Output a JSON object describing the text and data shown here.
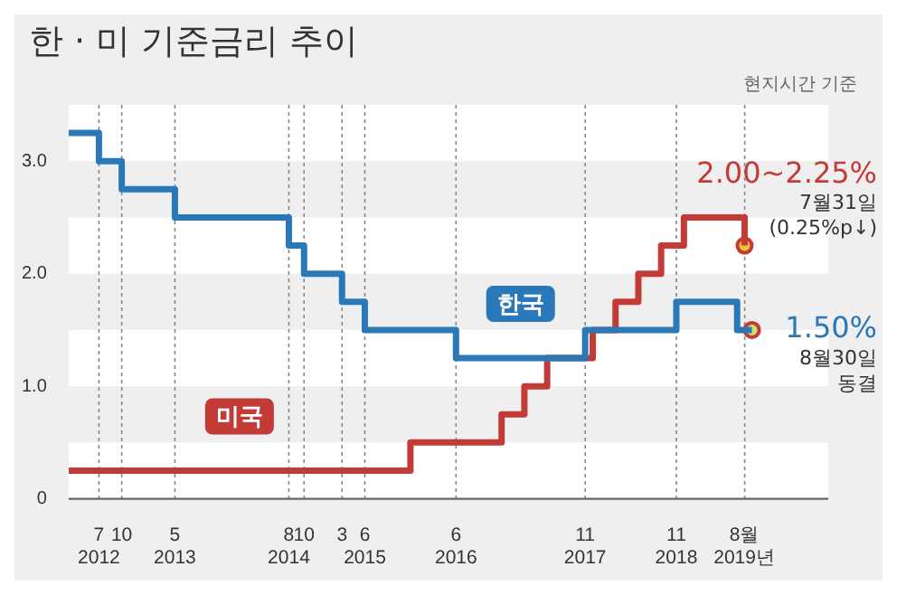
{
  "chart_data": {
    "type": "step",
    "title": "한 · 미 기준금리 추이",
    "annotations": [
      "현지시간 기준",
      {
        "text": "2.00~2.25%",
        "x": "2019-07-31",
        "y": 2.25
      },
      "7월31일",
      "(0.25%p↓)",
      {
        "text": "1.50%",
        "x": "2019-08-30",
        "y": 1.5
      },
      "8월30일",
      "동결"
    ],
    "xlim": [
      "2012-03",
      "2020-07"
    ],
    "xticks": [
      {
        "value": "2012-07",
        "label": "7\n2012"
      },
      {
        "value": "2012-10",
        "label": "10"
      },
      {
        "value": "2013-05",
        "label": "5\n2013"
      },
      {
        "value": "2014-08",
        "label": "8\n2014"
      },
      {
        "value": "2014-10",
        "label": "10"
      },
      {
        "value": "2015-03",
        "label": "3"
      },
      {
        "value": "2015-06",
        "label": "6\n2015"
      },
      {
        "value": "2016-06",
        "label": "6\n2016"
      },
      {
        "value": "2017-11",
        "label": "11\n2017"
      },
      {
        "value": "2018-11",
        "label": "11\n2018"
      },
      {
        "value": "2019-08",
        "label": "8월\n2019년"
      }
    ],
    "ylim": [
      0,
      3.5
    ],
    "yticks": [
      0,
      {
        "value": 1,
        "label": "1.0"
      },
      {
        "value": 2,
        "label": "2.0"
      },
      {
        "value": 3,
        "label": "3.0"
      }
    ],
    "grid": "x",
    "line_style": "solid",
    "bands": [
      {
        "axis": "y",
        "from": 0,
        "to": 0.5,
        "color": "#ffffff"
      },
      {
        "axis": "y",
        "from": 1,
        "to": 1.5,
        "color": "#ffffff"
      },
      {
        "axis": "y",
        "from": 2,
        "to": 2.5,
        "color": "#ffffff"
      },
      {
        "axis": "y",
        "from": 3,
        "to": 3.5,
        "color": "#ffffff"
      }
    ],
    "series": [
      {
        "name": "한국",
        "color": "#2a78b8",
        "x": [
          "2012-03",
          "2012-07",
          "2012-10",
          "2013-05",
          "2014-08",
          "2014-10",
          "2015-03",
          "2015-06",
          "2016-06",
          "2017-11",
          "2018-11",
          "2019-07",
          "2019-08-30"
        ],
        "values": [
          3.25,
          3.0,
          2.75,
          2.5,
          2.25,
          2.0,
          1.75,
          1.5,
          1.25,
          1.5,
          1.75,
          1.5,
          1.5
        ]
      },
      {
        "name": "미국",
        "color": "#c23b36",
        "x": [
          "2012-03",
          "2015-12",
          "2016-12",
          "2017-03",
          "2017-06",
          "2017-12",
          "2018-03",
          "2018-06",
          "2018-09",
          "2018-12",
          "2019-07-31"
        ],
        "values": [
          0.25,
          0.5,
          0.75,
          1.0,
          1.25,
          1.5,
          1.75,
          2.0,
          2.25,
          2.5,
          2.25
        ]
      },
      {
        "type": "scatter",
        "color": "#f3c32c",
        "x": [
          "2019-07-31"
        ],
        "values": [
          2.25
        ],
        "marker": "circle"
      },
      {
        "type": "scatter",
        "color": "#c9e26d",
        "x": [
          "2019-08-30"
        ],
        "values": [
          1.5
        ],
        "marker": "circle"
      }
    ]
  }
}
